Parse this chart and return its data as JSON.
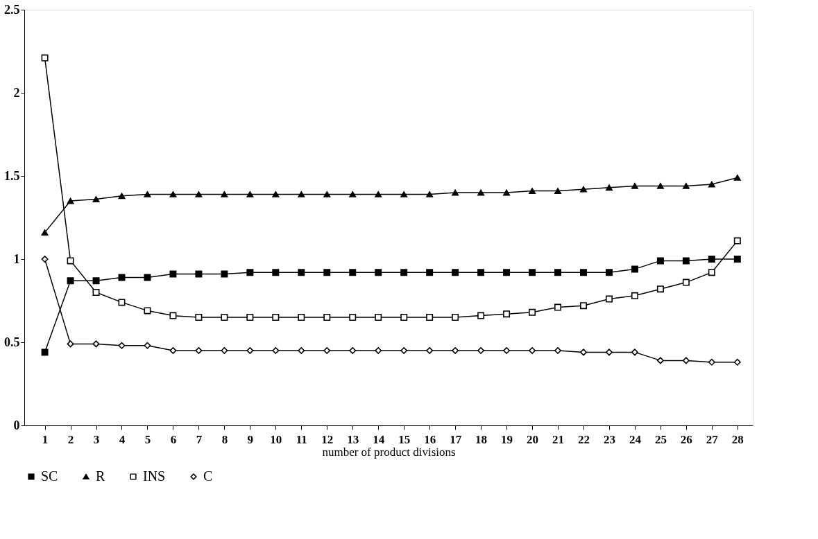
{
  "chart_data": {
    "type": "line",
    "xlabel": "number of product divisions",
    "x": [
      1,
      2,
      3,
      4,
      5,
      6,
      7,
      8,
      9,
      10,
      11,
      12,
      13,
      14,
      15,
      16,
      17,
      18,
      19,
      20,
      21,
      22,
      23,
      24,
      25,
      26,
      27,
      28
    ],
    "xlim": [
      0.2,
      28.6
    ],
    "xticks": [
      1,
      2,
      3,
      4,
      5,
      6,
      7,
      8,
      9,
      10,
      11,
      12,
      13,
      14,
      15,
      16,
      17,
      18,
      19,
      20,
      21,
      22,
      23,
      24,
      25,
      26,
      27,
      28
    ],
    "ylim": [
      0,
      2.5
    ],
    "yticks": [
      0,
      0.5,
      1,
      1.5,
      2,
      2.5
    ],
    "grid": false,
    "legend": "bottom",
    "line_style": "solid",
    "series": [
      {
        "name": "SC",
        "color": "#000000",
        "marker": "square",
        "values": [
          0.44,
          0.87,
          0.87,
          0.89,
          0.89,
          0.91,
          0.91,
          0.91,
          0.92,
          0.92,
          0.92,
          0.92,
          0.92,
          0.92,
          0.92,
          0.92,
          0.92,
          0.92,
          0.92,
          0.92,
          0.92,
          0.92,
          0.92,
          0.94,
          0.99,
          0.99,
          1.0,
          1.0
        ]
      },
      {
        "name": "R",
        "color": "#000000",
        "marker": "triangle",
        "values": [
          1.16,
          1.35,
          1.36,
          1.38,
          1.39,
          1.39,
          1.39,
          1.39,
          1.39,
          1.39,
          1.39,
          1.39,
          1.39,
          1.39,
          1.39,
          1.39,
          1.4,
          1.4,
          1.4,
          1.41,
          1.41,
          1.42,
          1.43,
          1.44,
          1.44,
          1.44,
          1.45,
          1.49
        ]
      },
      {
        "name": "INS",
        "color": "#000000",
        "marker": "square",
        "values": [
          2.21,
          0.99,
          0.8,
          0.74,
          0.69,
          0.66,
          0.65,
          0.65,
          0.65,
          0.65,
          0.65,
          0.65,
          0.65,
          0.65,
          0.65,
          0.65,
          0.65,
          0.66,
          0.67,
          0.68,
          0.71,
          0.72,
          0.76,
          0.78,
          0.82,
          0.86,
          0.92,
          1.11
        ]
      },
      {
        "name": "C",
        "color": "#000000",
        "marker": "diamond",
        "values": [
          1.0,
          0.49,
          0.49,
          0.48,
          0.48,
          0.45,
          0.45,
          0.45,
          0.45,
          0.45,
          0.45,
          0.45,
          0.45,
          0.45,
          0.45,
          0.45,
          0.45,
          0.45,
          0.45,
          0.45,
          0.45,
          0.44,
          0.44,
          0.44,
          0.39,
          0.39,
          0.38,
          0.38
        ]
      }
    ]
  }
}
